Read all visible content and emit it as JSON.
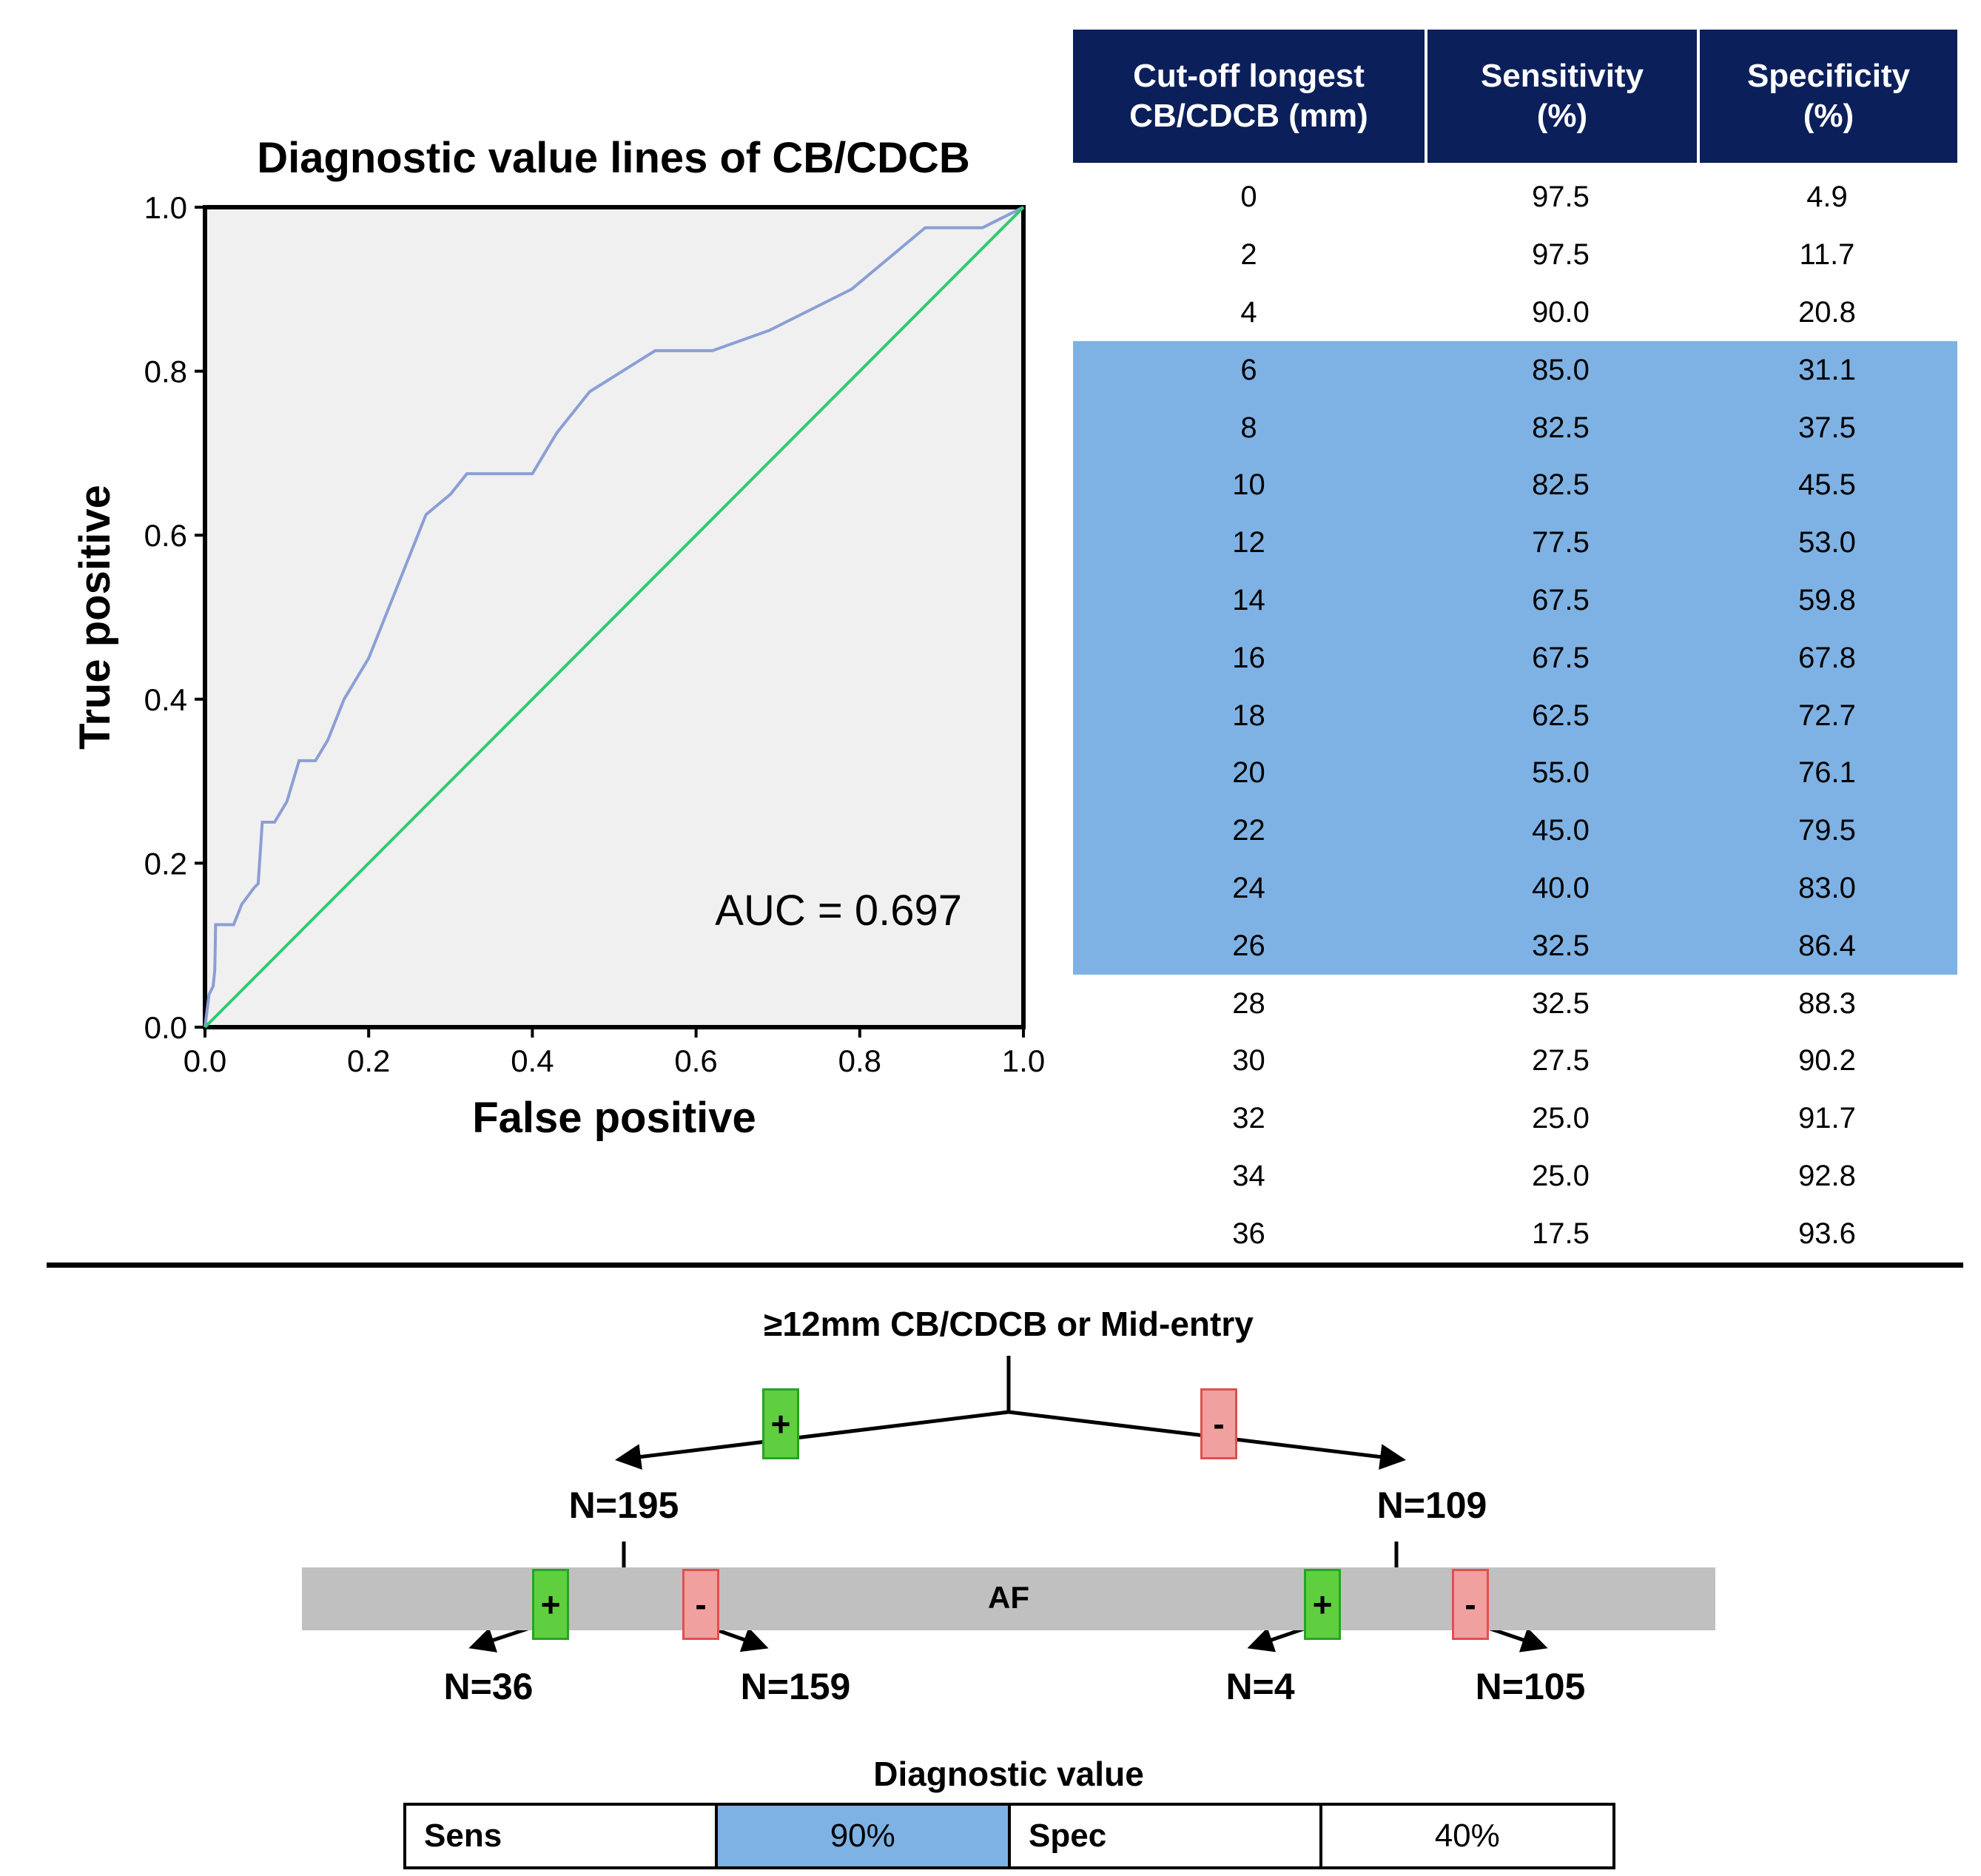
{
  "chart_data": {
    "type": "line",
    "title": "Diagnostic value lines of CB/CDCB",
    "xlabel": "False positive",
    "ylabel": "True positive",
    "xlim": [
      0,
      1
    ],
    "ylim": [
      0,
      1
    ],
    "xticks": [
      "0.0",
      "0.2",
      "0.4",
      "0.6",
      "0.8",
      "1.0"
    ],
    "yticks": [
      "0.0",
      "0.2",
      "0.4",
      "0.6",
      "0.8",
      "1.0"
    ],
    "annotation": "AUC = 0.697",
    "series": [
      {
        "name": "ROC",
        "color": "#8a9fd4",
        "x": [
          0,
          0.005,
          0.01,
          0.012,
          0.013,
          0.02,
          0.035,
          0.045,
          0.06,
          0.065,
          0.07,
          0.075,
          0.085,
          0.1,
          0.115,
          0.135,
          0.15,
          0.17,
          0.2,
          0.22,
          0.24,
          0.27,
          0.3,
          0.32,
          0.38,
          0.4,
          0.43,
          0.47,
          0.51,
          0.55,
          0.62,
          0.69,
          0.79,
          0.88,
          0.9,
          0.95,
          0.98,
          1.0
        ],
        "y": [
          0,
          0.04,
          0.05,
          0.07,
          0.125,
          0.125,
          0.125,
          0.15,
          0.17,
          0.175,
          0.25,
          0.25,
          0.25,
          0.275,
          0.325,
          0.325,
          0.35,
          0.4,
          0.45,
          0.5,
          0.55,
          0.625,
          0.65,
          0.675,
          0.675,
          0.675,
          0.725,
          0.775,
          0.8,
          0.825,
          0.825,
          0.85,
          0.9,
          0.975,
          0.975,
          0.975,
          0.99,
          1.0
        ]
      },
      {
        "name": "Reference",
        "color": "#2ecc71",
        "x": [
          0,
          1
        ],
        "y": [
          0,
          1
        ]
      }
    ]
  },
  "table": {
    "headers": [
      "Cut-off longest\nCB/CDCB (mm)",
      "Sensitivity\n(%)",
      "Specificity\n(%)"
    ],
    "header_color": "#0b1f5b",
    "highlight_color": "#7eb2e4",
    "rows": [
      {
        "cutoff": "0",
        "sens": "97.5",
        "spec": "4.9",
        "highlight": false
      },
      {
        "cutoff": "2",
        "sens": "97.5",
        "spec": "11.7",
        "highlight": false
      },
      {
        "cutoff": "4",
        "sens": "90.0",
        "spec": "20.8",
        "highlight": false
      },
      {
        "cutoff": "6",
        "sens": "85.0",
        "spec": "31.1",
        "highlight": true
      },
      {
        "cutoff": "8",
        "sens": "82.5",
        "spec": "37.5",
        "highlight": true
      },
      {
        "cutoff": "10",
        "sens": "82.5",
        "spec": "45.5",
        "highlight": true
      },
      {
        "cutoff": "12",
        "sens": "77.5",
        "spec": "53.0",
        "highlight": true
      },
      {
        "cutoff": "14",
        "sens": "67.5",
        "spec": "59.8",
        "highlight": true
      },
      {
        "cutoff": "16",
        "sens": "67.5",
        "spec": "67.8",
        "highlight": true
      },
      {
        "cutoff": "18",
        "sens": "62.5",
        "spec": "72.7",
        "highlight": true
      },
      {
        "cutoff": "20",
        "sens": "55.0",
        "spec": "76.1",
        "highlight": true
      },
      {
        "cutoff": "22",
        "sens": "45.0",
        "spec": "79.5",
        "highlight": true
      },
      {
        "cutoff": "24",
        "sens": "40.0",
        "spec": "83.0",
        "highlight": true
      },
      {
        "cutoff": "26",
        "sens": "32.5",
        "spec": "86.4",
        "highlight": true
      },
      {
        "cutoff": "28",
        "sens": "32.5",
        "spec": "88.3",
        "highlight": false
      },
      {
        "cutoff": "30",
        "sens": "27.5",
        "spec": "90.2",
        "highlight": false
      },
      {
        "cutoff": "32",
        "sens": "25.0",
        "spec": "91.7",
        "highlight": false
      },
      {
        "cutoff": "34",
        "sens": "25.0",
        "spec": "92.8",
        "highlight": false
      },
      {
        "cutoff": "36",
        "sens": "17.5",
        "spec": "93.6",
        "highlight": false
      }
    ]
  },
  "tree": {
    "title": "≥12mm CB/CDCB or Mid-entry",
    "plus": "+",
    "minus": "-",
    "left_total": "N=195",
    "right_total": "N=109",
    "band_label": "AF",
    "left_pos": "N=36",
    "left_neg": "N=159",
    "right_pos": "N=4",
    "right_neg": "N=105",
    "pos_color": "#5fcf3f",
    "neg_color": "#f1a0a0",
    "band_color": "#c0c0c0"
  },
  "diagnostic_value": {
    "title": "Diagnostic value",
    "sens_label": "Sens",
    "sens_value": "90%",
    "spec_label": "Spec",
    "spec_value": "40%"
  }
}
